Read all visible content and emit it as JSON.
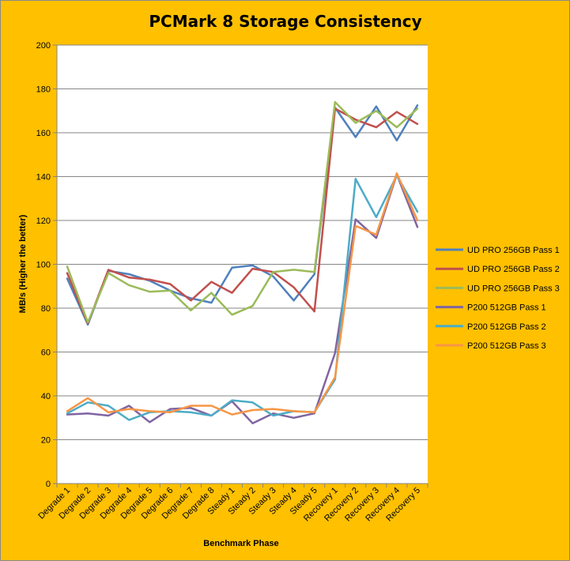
{
  "chart_data": {
    "type": "line",
    "title": "PCMark 8 Storage Consistency",
    "xlabel": "Benchmark Phase",
    "ylabel": "MB/s (Higher the better)",
    "ylim": [
      0,
      200
    ],
    "ytick_step": 20,
    "grid": "horizontal",
    "legend": "right",
    "categories": [
      "Degrade 1",
      "Degrade 2",
      "Degrade 3",
      "Degrade 4",
      "Degrade 5",
      "Degrade 6",
      "Degrade 7",
      "Degrade 8",
      "Steady 1",
      "Steady 2",
      "Steady 3",
      "Steady 4",
      "Steady 5",
      "Recovery 1",
      "Recovery 2",
      "Recovery 3",
      "Recovery 4",
      "Recovery 5"
    ],
    "series": [
      {
        "name": "UD PRO 256GB Pass 1",
        "color": "#4F81BD",
        "values": [
          93.5,
          72.5,
          97.0,
          95.5,
          92.5,
          88.0,
          84.5,
          82.5,
          98.5,
          99.5,
          94.5,
          83.5,
          95.5,
          171.5,
          158.0,
          172.0,
          156.5,
          172.5
        ]
      },
      {
        "name": "UD PRO 256GB Pass 2",
        "color": "#C0504D",
        "values": [
          96.0,
          73.0,
          97.5,
          94.0,
          93.0,
          91.0,
          83.5,
          92.0,
          87.0,
          98.0,
          96.5,
          89.5,
          78.5,
          171.0,
          166.0,
          162.5,
          169.5,
          164.0
        ]
      },
      {
        "name": "UD PRO 256GB Pass 3",
        "color": "#9BBB59",
        "values": [
          99.0,
          73.5,
          96.0,
          90.5,
          87.5,
          88.0,
          79.0,
          87.0,
          77.0,
          81.0,
          96.5,
          97.5,
          96.5,
          174.0,
          164.5,
          170.0,
          162.5,
          171.0
        ]
      },
      {
        "name": "P200 512GB Pass 1",
        "color": "#8064A2",
        "values": [
          31.5,
          32.0,
          31.0,
          35.5,
          28.0,
          34.0,
          34.5,
          31.0,
          37.5,
          27.5,
          32.0,
          30.0,
          32.0,
          59.5,
          120.5,
          112.0,
          141.0,
          117.0
        ]
      },
      {
        "name": "P200 512GB Pass 2",
        "color": "#4BACC6",
        "values": [
          32.0,
          37.0,
          35.5,
          29.0,
          32.5,
          33.0,
          32.5,
          31.0,
          38.0,
          37.0,
          31.0,
          33.0,
          32.5,
          47.5,
          139.0,
          121.5,
          140.5,
          124.0
        ]
      },
      {
        "name": "P200 512GB Pass 3",
        "color": "#F79646",
        "values": [
          33.0,
          39.0,
          32.5,
          34.0,
          33.0,
          32.5,
          35.5,
          35.5,
          31.5,
          33.5,
          34.0,
          33.0,
          32.5,
          48.5,
          117.5,
          113.5,
          141.5,
          120.0
        ]
      }
    ]
  }
}
